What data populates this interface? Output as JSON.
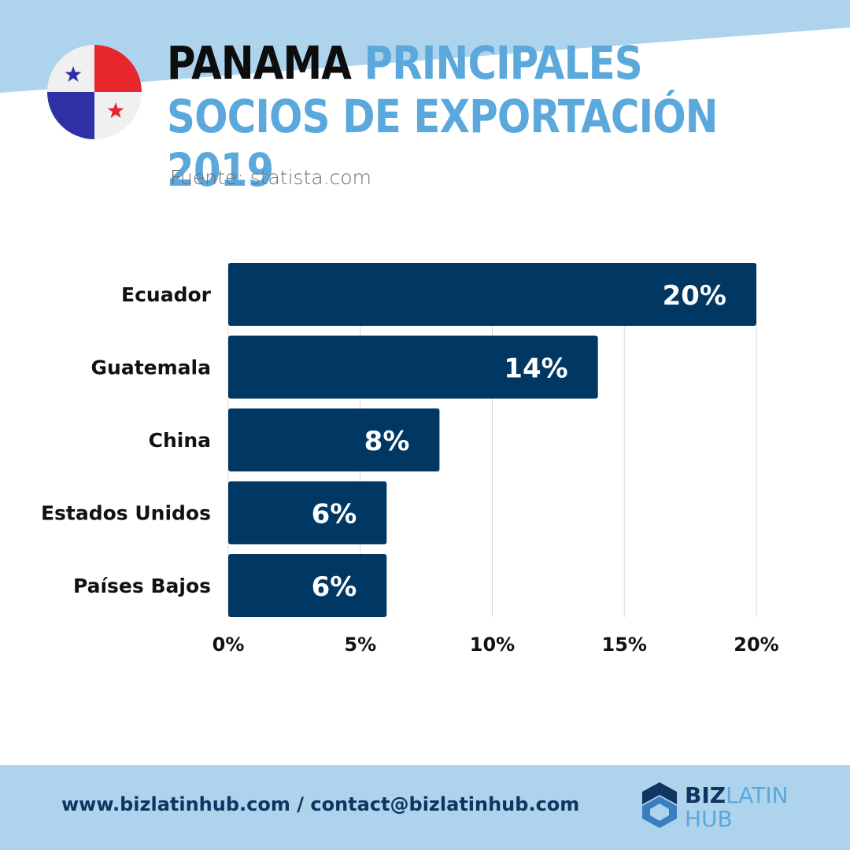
{
  "header": {
    "title_strong": "PANAMA",
    "title_rest": "PRINCIPALES SOCIOS DE EXPORTACIÓN 2019",
    "source": "Fuente: statista.com"
  },
  "colors": {
    "bar": "#003763",
    "title_accent": "#5aa8dc",
    "background_band": "#aed3ec",
    "grid": "#d9d9d9"
  },
  "chart_data": {
    "type": "bar",
    "orientation": "horizontal",
    "categories": [
      "Ecuador",
      "Guatemala",
      "China",
      "Estados Unidos",
      "Países Bajos"
    ],
    "values": [
      20,
      14,
      8,
      6,
      6
    ],
    "value_labels": [
      "20%",
      "14%",
      "8%",
      "6%",
      "6%"
    ],
    "x_ticks": [
      "0%",
      "5%",
      "10%",
      "15%",
      "20%"
    ],
    "xlim": [
      0,
      20
    ],
    "grid": true
  },
  "footer": {
    "contact": "www.bizlatinhub.com / contact@bizlatinhub.com",
    "logo_biz": "BIZ",
    "logo_latin": "LATIN",
    "logo_hub": "HUB"
  }
}
